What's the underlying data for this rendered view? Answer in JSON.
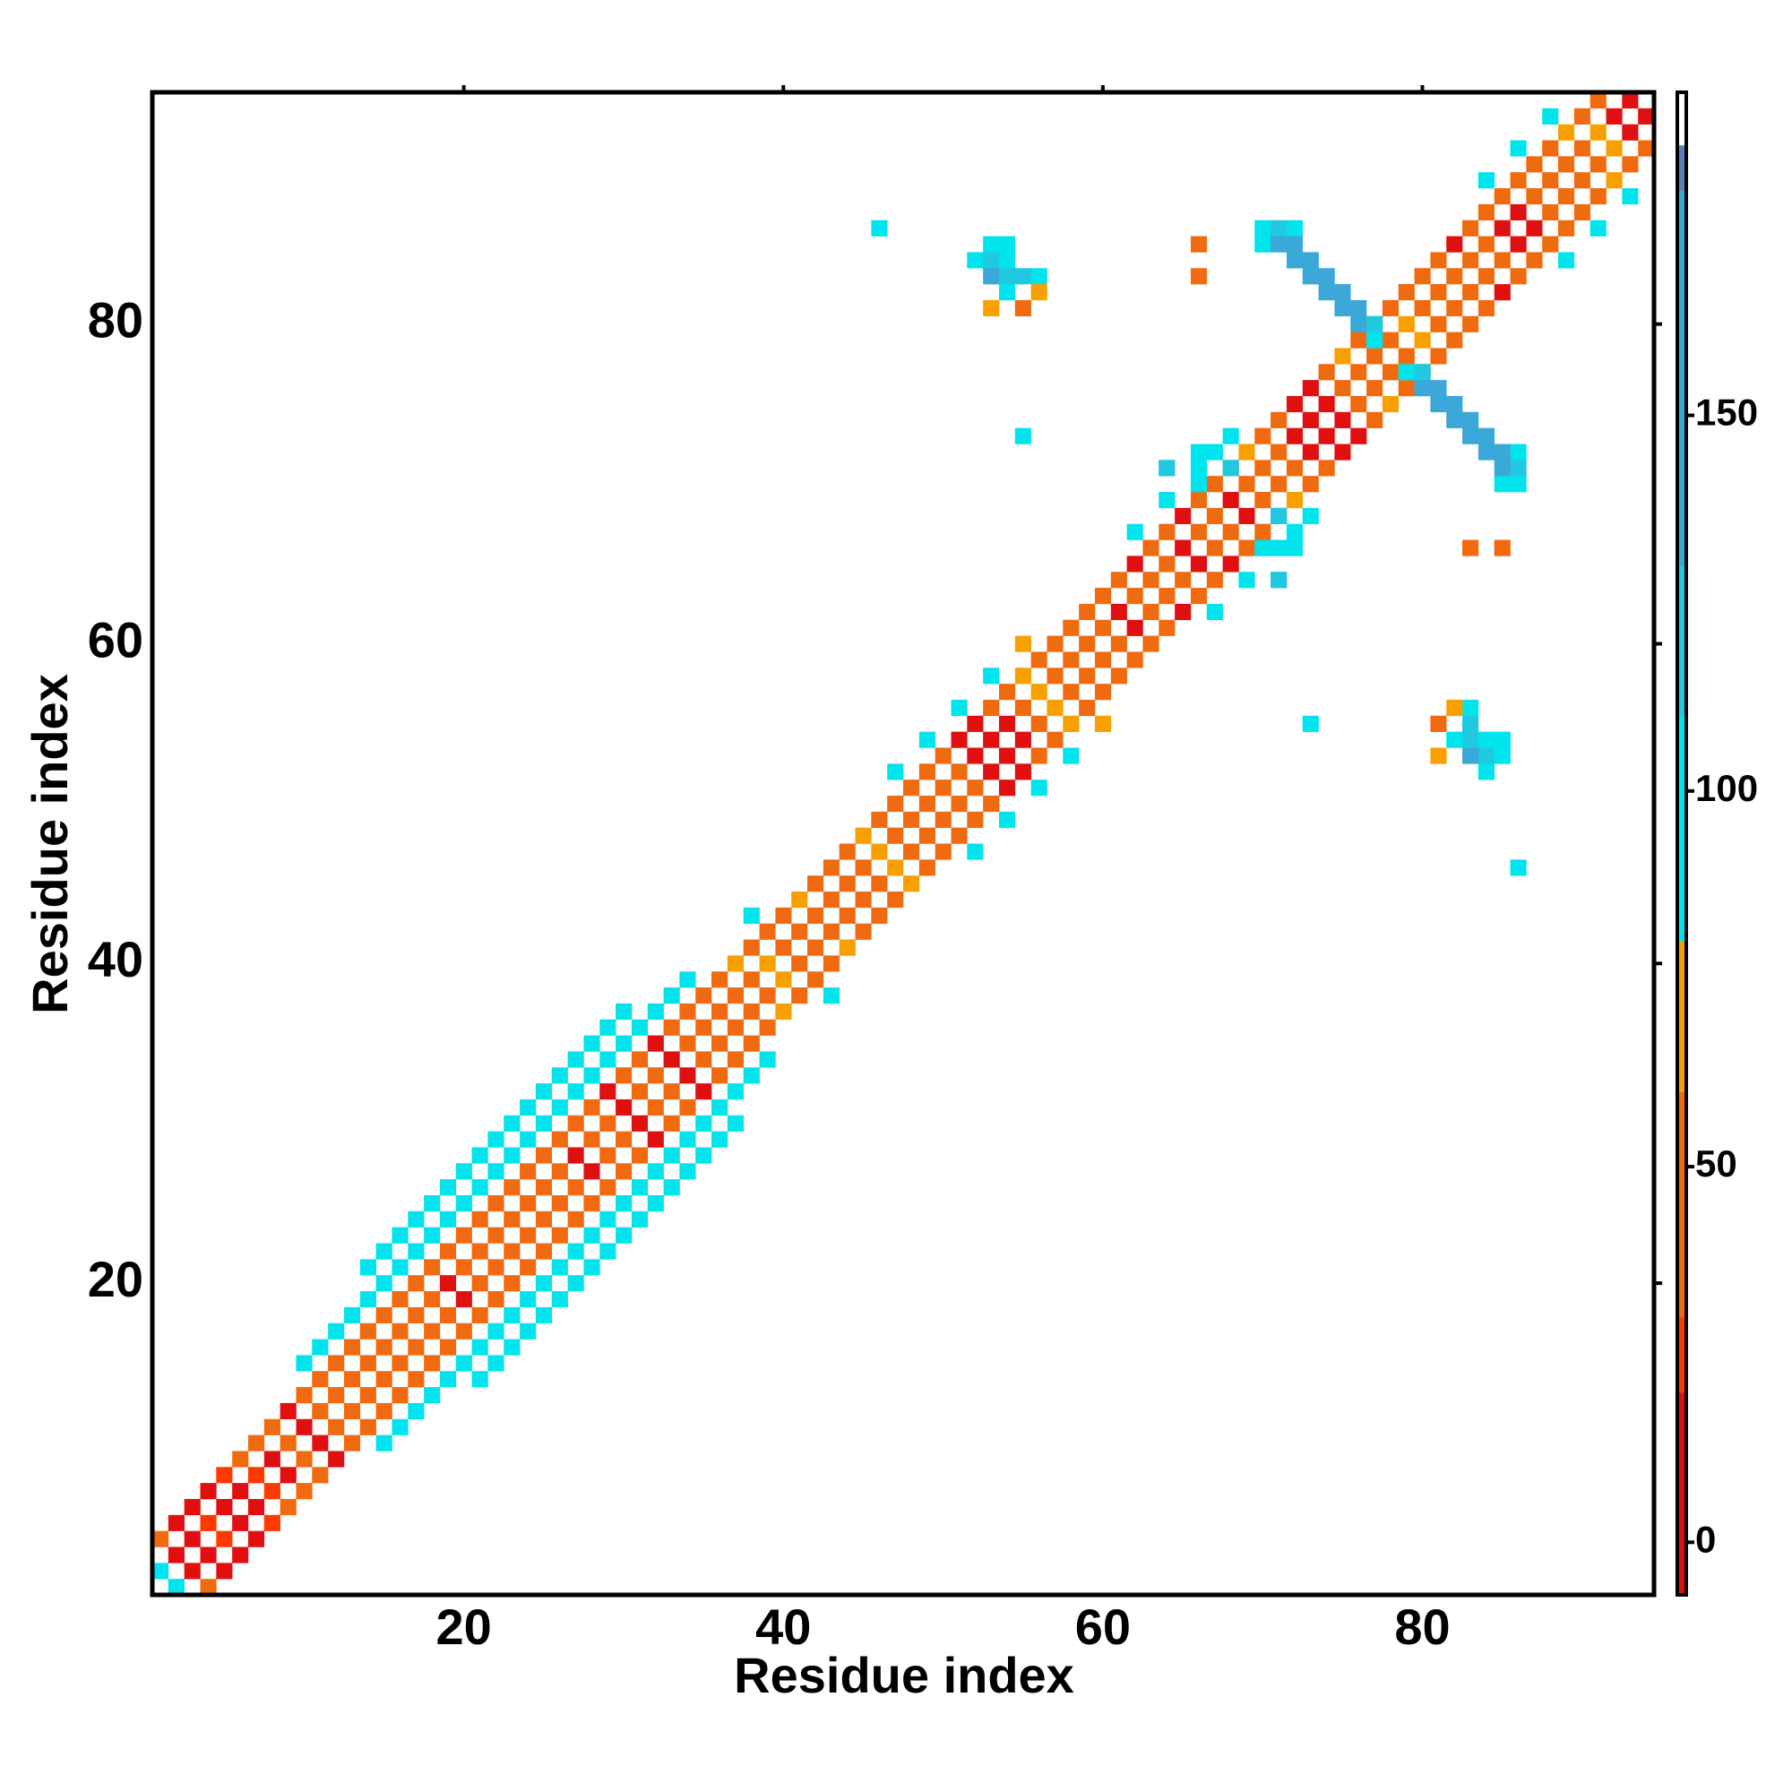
{
  "chart_data": {
    "type": "heatmap",
    "xlabel": "Residue index",
    "ylabel": "Residue index",
    "xlim": [
      0.5,
      94.5
    ],
    "ylim": [
      0.5,
      94.5
    ],
    "xticks": [
      20,
      40,
      60,
      80
    ],
    "yticks": [
      20,
      40,
      60,
      80
    ],
    "symmetric": true,
    "bands": [
      {
        "offset": 1,
        "values": [
          100,
          15,
          10,
          20,
          10,
          15,
          25,
          10,
          40,
          15,
          40,
          40,
          45,
          40,
          40,
          40,
          40,
          40,
          15,
          40,
          40,
          40,
          40,
          40,
          40,
          40,
          15,
          40,
          40,
          15,
          40,
          40,
          15,
          40,
          40,
          40,
          40,
          40,
          70,
          40,
          40,
          40,
          40,
          40,
          40,
          70,
          40,
          40,
          40,
          40,
          40,
          15,
          15,
          15,
          40,
          70,
          40,
          40,
          40,
          40,
          15,
          40,
          40,
          40,
          15,
          40,
          40,
          15,
          40,
          40,
          40,
          15,
          10,
          10,
          40,
          40,
          40,
          40,
          70,
          40,
          40,
          40,
          40,
          40,
          15,
          15,
          40,
          40,
          40,
          40,
          70,
          15,
          15
        ]
      },
      {
        "offset": 3,
        "values": [
          40,
          10,
          15,
          10,
          20,
          40,
          40,
          40,
          15,
          40,
          40,
          40,
          40,
          40,
          40,
          40,
          40,
          40,
          40,
          40,
          40,
          40,
          40,
          40,
          40,
          40,
          40,
          40,
          15,
          40,
          40,
          15,
          40,
          40,
          40,
          40,
          70,
          40,
          40,
          40,
          70,
          40,
          40,
          40,
          70,
          40,
          40,
          40,
          40,
          40,
          15,
          15,
          40,
          40,
          70,
          40,
          40,
          40,
          40,
          40,
          40,
          15,
          40,
          40,
          15,
          40,
          40,
          40,
          70,
          40,
          40,
          15,
          10,
          40,
          70,
          40,
          40,
          40,
          40,
          40,
          40,
          15,
          40,
          40,
          40,
          40,
          40,
          40,
          70,
          40,
          40
        ]
      },
      {
        "offset": 5,
        "values": [
          null,
          null,
          null,
          null,
          null,
          null,
          null,
          null,
          null,
          95,
          95,
          95,
          95,
          95,
          95,
          95,
          95,
          95,
          95,
          95,
          95,
          95,
          95,
          95,
          95,
          95,
          95,
          95,
          95,
          95,
          95,
          95,
          95,
          95,
          null,
          null,
          null,
          95,
          null,
          null,
          null,
          null,
          null,
          null,
          null,
          null,
          95,
          null,
          95,
          null,
          95,
          null,
          95,
          null,
          60,
          null,
          null,
          null,
          null,
          null,
          null,
          95,
          null,
          95,
          null,
          95,
          null,
          95,
          null,
          null,
          null,
          null,
          null,
          null,
          null,
          null,
          null,
          null,
          null,
          null,
          null,
          null,
          null,
          95,
          null,
          95,
          null,
          95,
          null
        ]
      },
      {
        "offset": 7,
        "values": [
          null,
          null,
          null,
          null,
          null,
          null,
          null,
          null,
          null,
          null,
          null,
          null,
          null,
          95,
          95,
          95,
          95,
          95,
          95,
          95,
          95,
          95,
          95,
          95,
          95,
          95,
          95,
          95,
          95,
          95,
          null,
          null,
          null,
          null,
          null,
          null,
          null,
          null,
          null,
          null,
          null,
          null,
          null,
          null,
          null,
          null,
          null,
          null,
          null,
          null,
          null,
          null,
          null,
          null,
          null,
          null,
          null,
          null,
          null,
          null,
          null,
          null,
          null,
          95,
          null,
          null,
          null,
          null,
          null,
          null,
          null,
          null,
          null,
          null,
          null,
          null,
          null,
          null,
          null,
          null,
          null,
          null,
          null,
          null,
          null,
          null,
          null
        ]
      }
    ],
    "cells": [
      [
        46,
        86,
        95
      ],
      [
        52,
        84,
        95
      ],
      [
        53,
        84,
        110
      ],
      [
        54,
        84,
        95
      ],
      [
        53,
        85,
        95
      ],
      [
        54,
        85,
        95
      ],
      [
        53,
        83,
        130
      ],
      [
        54,
        83,
        110
      ],
      [
        55,
        83,
        110
      ],
      [
        56,
        83,
        95
      ],
      [
        54,
        82,
        95
      ],
      [
        53,
        81,
        60
      ],
      [
        55,
        81,
        45
      ],
      [
        56,
        82,
        60
      ],
      [
        66,
        83,
        45
      ],
      [
        66,
        85,
        45
      ],
      [
        55,
        73,
        100
      ],
      [
        64,
        71,
        110
      ],
      [
        66,
        72,
        95
      ],
      [
        67,
        72,
        95
      ],
      [
        68,
        71,
        110
      ],
      [
        66,
        70,
        95
      ],
      [
        70,
        86,
        95
      ],
      [
        70,
        85,
        95
      ],
      [
        71,
        86,
        110
      ],
      [
        71,
        85,
        130
      ],
      [
        72,
        86,
        95
      ],
      [
        72,
        85,
        140
      ],
      [
        72,
        84,
        130
      ],
      [
        73,
        84,
        140
      ],
      [
        73,
        83,
        130
      ],
      [
        74,
        83,
        140
      ],
      [
        74,
        82,
        130
      ],
      [
        75,
        82,
        140
      ],
      [
        75,
        81,
        130
      ],
      [
        76,
        81,
        150
      ],
      [
        76,
        80,
        130
      ],
      [
        77,
        80,
        110
      ],
      [
        77,
        79,
        95
      ]
    ],
    "clim": [
      -7,
      193
    ],
    "cticks": [
      0,
      50,
      100,
      150
    ],
    "colorscale": [
      [
        -7,
        "#e01010"
      ],
      [
        20,
        "#ff3a00"
      ],
      [
        30,
        "#f06a10"
      ],
      [
        60,
        "#f8a000"
      ],
      [
        80,
        "#00e4ee"
      ],
      [
        110,
        "#20c8e0"
      ],
      [
        130,
        "#3aa8d8"
      ],
      [
        180,
        "#5a80b8"
      ],
      [
        186,
        "#ffffff"
      ]
    ]
  }
}
